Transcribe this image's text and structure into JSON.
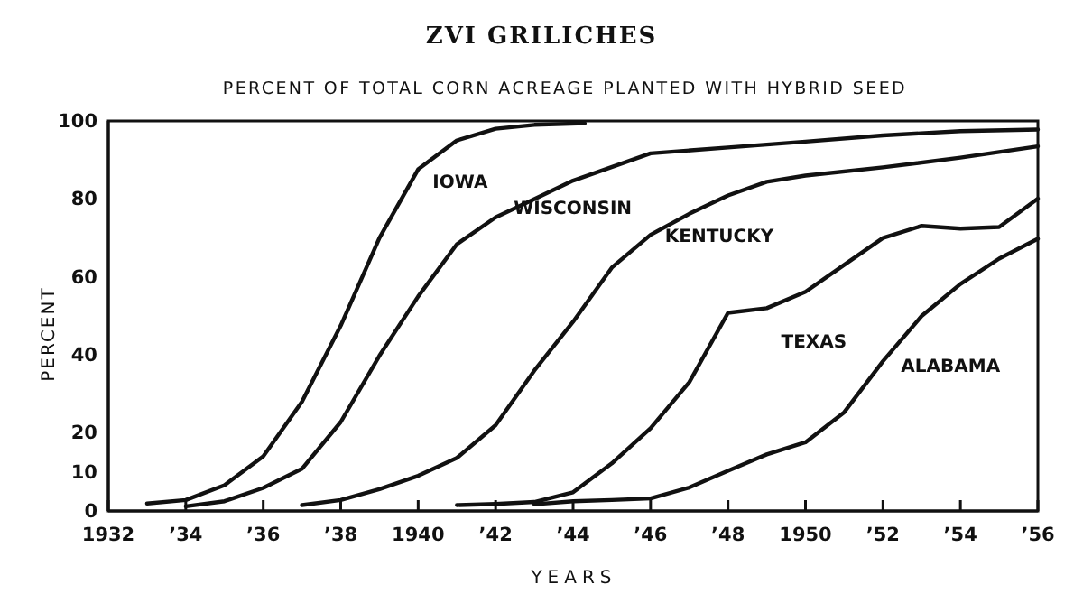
{
  "chart_data": {
    "type": "line",
    "title": "ZVI GRILICHES",
    "subtitle": "PERCENT OF TOTAL CORN ACREAGE PLANTED WITH HYBRID SEED",
    "xlabel": "YEARS",
    "ylabel": "PERCENT",
    "xlim": [
      1932,
      1956
    ],
    "xticks": [
      1932,
      {
        "value": 1934,
        "label": "’34"
      },
      {
        "value": 1936,
        "label": "’36"
      },
      {
        "value": 1938,
        "label": "’38"
      },
      1940,
      {
        "value": 1942,
        "label": "’42"
      },
      {
        "value": 1944,
        "label": "’44"
      },
      {
        "value": 1946,
        "label": "’46"
      },
      {
        "value": 1948,
        "label": "’48"
      },
      1950,
      {
        "value": 1952,
        "label": "’52"
      },
      {
        "value": 1954,
        "label": "’54"
      },
      {
        "value": 1956,
        "label": "’56"
      }
    ],
    "ylim": [
      0,
      100
    ],
    "yticks": [
      0,
      10,
      20,
      40,
      60,
      80,
      100
    ],
    "grid": false,
    "legend": false,
    "marker": "none",
    "line_style": "solid",
    "series": [
      {
        "name": "IOWA",
        "color": "#111111",
        "x": [
          1933,
          1934,
          1935,
          1936,
          1937,
          1938,
          1939,
          1940,
          1941,
          1942,
          1943,
          1944.3
        ],
        "values": [
          1.9,
          2.8,
          6.6,
          14,
          28,
          47.5,
          70,
          87.6,
          95,
          98,
          99,
          99.4
        ]
      },
      {
        "name": "WISCONSIN",
        "color": "#111111",
        "x": [
          1934,
          1935,
          1936,
          1937,
          1938,
          1939,
          1940,
          1941,
          1942,
          1943,
          1944,
          1946,
          1948,
          1950,
          1952,
          1954,
          1956
        ],
        "values": [
          1.2,
          2.5,
          5.9,
          10.8,
          22.8,
          39.8,
          55,
          68.4,
          75.3,
          80,
          84.7,
          91.7,
          93.2,
          94.7,
          96.3,
          97.4,
          97.8
        ]
      },
      {
        "name": "KENTUCKY",
        "color": "#111111",
        "x": [
          1937,
          1938,
          1939,
          1940,
          1941,
          1942,
          1943,
          1944,
          1945,
          1946,
          1947,
          1948,
          1949,
          1950,
          1952,
          1954,
          1956
        ],
        "values": [
          1.5,
          2.8,
          5.6,
          9,
          13.6,
          22,
          36,
          48.5,
          62.4,
          70.8,
          76.2,
          80.9,
          84.4,
          86,
          88.1,
          90.6,
          93.5
        ]
      },
      {
        "name": "TEXAS",
        "color": "#111111",
        "x": [
          1941,
          1942,
          1943,
          1944,
          1945,
          1946,
          1947,
          1948,
          1949,
          1950,
          1951,
          1952,
          1953,
          1954,
          1955,
          1956
        ],
        "values": [
          1.5,
          1.8,
          2.3,
          4.8,
          12.2,
          21.2,
          33,
          50.8,
          52,
          56.2,
          63.1,
          70,
          73.1,
          72.4,
          72.8,
          80.1
        ]
      },
      {
        "name": "ALABAMA",
        "color": "#111111",
        "x": [
          1943,
          1944,
          1945,
          1946,
          1947,
          1948,
          1949,
          1950,
          1951,
          1952,
          1953,
          1954,
          1955,
          1956
        ],
        "values": [
          1.7,
          2.5,
          2.8,
          3.2,
          6,
          10.3,
          14.5,
          17.6,
          25.3,
          38.4,
          50,
          58.2,
          64.7,
          69.8
        ]
      }
    ]
  }
}
